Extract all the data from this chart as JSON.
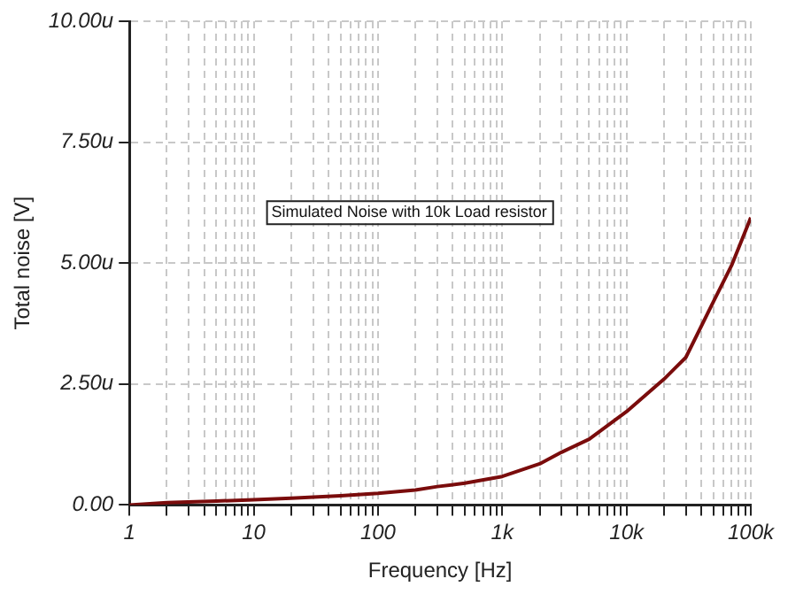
{
  "chart_data": {
    "type": "line",
    "xlabel": "Frequency [Hz]",
    "ylabel": "Total noise [V]",
    "annotations": [
      "Simulated Noise with 10k Load resistor"
    ],
    "x": [
      1,
      2,
      5,
      10,
      20,
      50,
      100,
      200,
      300,
      500,
      1000,
      2000,
      3000,
      5000,
      10000,
      20000,
      30000,
      50000,
      70000,
      100000
    ],
    "series": [
      {
        "color": "#7a0c0c",
        "values": [
          0,
          0.05,
          0.08,
          0.11,
          0.14,
          0.19,
          0.24,
          0.31,
          0.38,
          0.45,
          0.59,
          0.85,
          1.09,
          1.36,
          1.93,
          2.6,
          3.05,
          4.2,
          4.95,
          5.94
        ]
      }
    ],
    "xlim": [
      1,
      100000
    ],
    "xticks": [
      1,
      {
        "value": 2,
        "label": null
      },
      {
        "value": 3,
        "label": null
      },
      {
        "value": 4,
        "label": null
      },
      {
        "value": 5,
        "label": null
      },
      {
        "value": 6,
        "label": null
      },
      {
        "value": 7,
        "label": null
      },
      {
        "value": 8,
        "label": null
      },
      {
        "value": 9,
        "label": null
      },
      10,
      {
        "value": 20,
        "label": null
      },
      {
        "value": 30,
        "label": null
      },
      {
        "value": 40,
        "label": null
      },
      {
        "value": 50,
        "label": null
      },
      {
        "value": 60,
        "label": null
      },
      {
        "value": 70,
        "label": null
      },
      {
        "value": 80,
        "label": null
      },
      {
        "value": 90,
        "label": null
      },
      100,
      {
        "value": 200,
        "label": null
      },
      {
        "value": 300,
        "label": null
      },
      {
        "value": 400,
        "label": null
      },
      {
        "value": 500,
        "label": null
      },
      {
        "value": 600,
        "label": null
      },
      {
        "value": 700,
        "label": null
      },
      {
        "value": 800,
        "label": null
      },
      {
        "value": 900,
        "label": null
      },
      {
        "value": 1000,
        "label": "1k"
      },
      {
        "value": 2000,
        "label": null
      },
      {
        "value": 3000,
        "label": null
      },
      {
        "value": 4000,
        "label": null
      },
      {
        "value": 5000,
        "label": null
      },
      {
        "value": 6000,
        "label": null
      },
      {
        "value": 7000,
        "label": null
      },
      {
        "value": 8000,
        "label": null
      },
      {
        "value": 9000,
        "label": null
      },
      {
        "value": 10000,
        "label": "10k"
      },
      {
        "value": 20000,
        "label": null
      },
      {
        "value": 30000,
        "label": null
      },
      {
        "value": 40000,
        "label": null
      },
      {
        "value": 50000,
        "label": null
      },
      {
        "value": 60000,
        "label": null
      },
      {
        "value": 70000,
        "label": null
      },
      {
        "value": 80000,
        "label": null
      },
      {
        "value": 90000,
        "label": null
      },
      {
        "value": 100000,
        "label": "100k"
      }
    ],
    "ylim": [
      0,
      10
    ],
    "yticks": [
      {
        "value": 0,
        "label": "0.00"
      },
      {
        "value": 2.5,
        "label": "2.50u"
      },
      {
        "value": 5,
        "label": "5.00u"
      },
      {
        "value": 7.5,
        "label": "7.50u"
      },
      {
        "value": 10,
        "label": "10.00u"
      }
    ],
    "log": "x",
    "grid": true,
    "legend": false,
    "marker": "none",
    "line_style": "solid"
  }
}
